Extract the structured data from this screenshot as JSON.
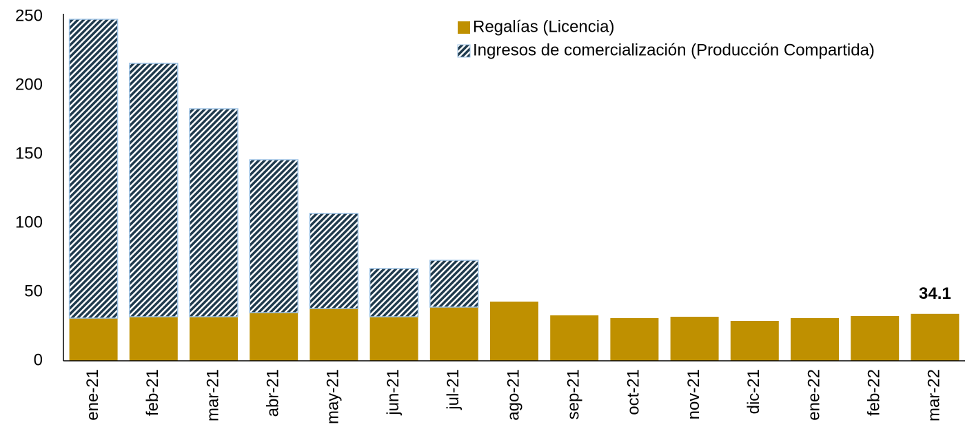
{
  "chart_data": {
    "type": "stacked_bar",
    "categories": [
      "ene-21",
      "feb-21",
      "mar-21",
      "abr-21",
      "may-21",
      "jun-21",
      "jul-21",
      "ago-21",
      "sep-21",
      "oct-21",
      "nov-21",
      "dic-21",
      "ene-22",
      "feb-22",
      "mar-22"
    ],
    "series": [
      {
        "name": "Regalías (Licencia)",
        "color": "#bf9000",
        "values": [
          31,
          32,
          32,
          35,
          38,
          32,
          39,
          43,
          33,
          31,
          32,
          29,
          31,
          32.5,
          34.1
        ]
      },
      {
        "name": "Ingresos de comercialización (Producción Compartida)",
        "color": "#1f3a4d",
        "values": [
          217,
          184,
          151,
          111,
          69,
          35,
          34,
          null,
          null,
          null,
          null,
          null,
          null,
          null,
          null
        ]
      }
    ],
    "ylim": [
      0,
      250
    ],
    "yticks": [
      0,
      50,
      100,
      150,
      200,
      250
    ],
    "grid": false,
    "legend": "top-right"
  }
}
